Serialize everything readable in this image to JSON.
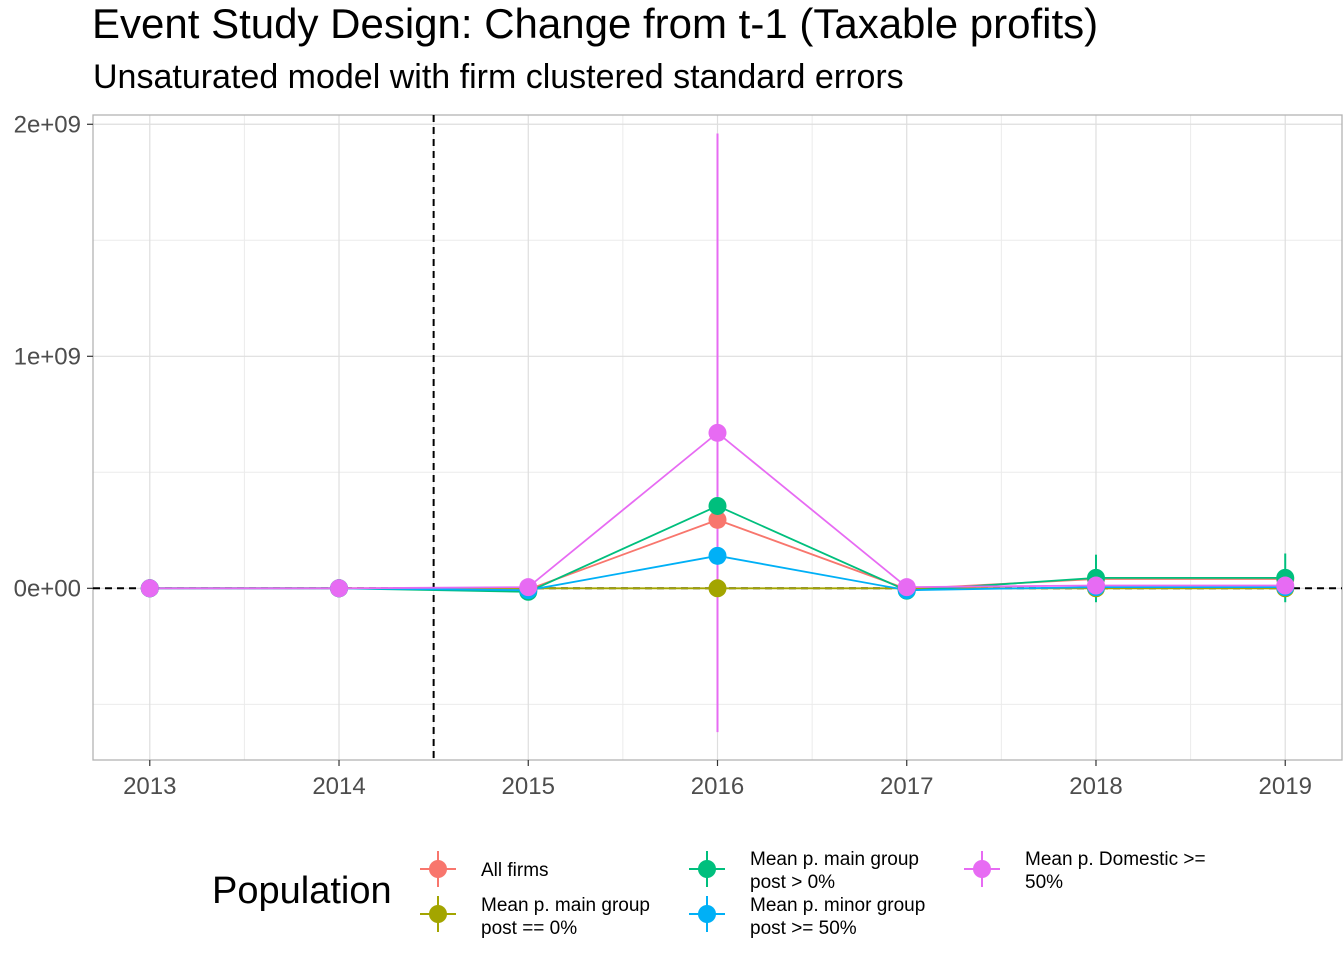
{
  "chart_data": {
    "type": "line",
    "title": "Event Study Design: Change from t-1 (Taxable profits)",
    "subtitle": "Unsaturated model with firm clustered standard errors",
    "xlabel": "",
    "ylabel": "",
    "x": [
      2013,
      2014,
      2015,
      2016,
      2017,
      2018,
      2019
    ],
    "xlim": [
      2012.7,
      2019.3
    ],
    "ylim": [
      -740000000,
      2040000000
    ],
    "y_ticks": [
      0,
      1000000000,
      2000000000
    ],
    "y_tick_labels": [
      "0e+00",
      "1e+09",
      "2e+09"
    ],
    "x_tick_labels": [
      "2013",
      "2014",
      "2015",
      "2016",
      "2017",
      "2018",
      "2019"
    ],
    "reference_lines": {
      "vertical_x": 2014.5,
      "horizontal_y": 0,
      "style": "dashed"
    },
    "grid": true,
    "legend_position": "bottom",
    "legend_title": "Population",
    "series": [
      {
        "name": "All firms",
        "color": "#F8766D",
        "values": [
          0,
          0,
          -5000000,
          295000000,
          -3000000,
          40000000,
          40000000
        ],
        "ci_low": [
          null,
          null,
          null,
          null,
          null,
          null,
          null
        ],
        "ci_high": [
          null,
          null,
          null,
          null,
          null,
          null,
          null
        ]
      },
      {
        "name": "Mean p. main group post == 0%",
        "color": "#A3A500",
        "values": [
          0,
          0,
          0,
          0,
          0,
          0,
          0
        ],
        "ci_low": [
          null,
          null,
          null,
          null,
          null,
          null,
          null
        ],
        "ci_high": [
          null,
          null,
          null,
          null,
          null,
          null,
          null
        ]
      },
      {
        "name": "Mean p. main group post > 0%",
        "color": "#00BF7D",
        "values": [
          0,
          0,
          -15000000,
          355000000,
          -10000000,
          45000000,
          45000000
        ],
        "ci_low": [
          null,
          null,
          null,
          null,
          null,
          -60000000,
          -60000000
        ],
        "ci_high": [
          null,
          null,
          null,
          null,
          null,
          145000000,
          150000000
        ]
      },
      {
        "name": "Mean p. minor group post >= 50%",
        "color": "#00B0F6",
        "values": [
          0,
          0,
          -8000000,
          140000000,
          -8000000,
          5000000,
          5000000
        ],
        "ci_low": [
          null,
          null,
          null,
          null,
          null,
          null,
          null
        ],
        "ci_high": [
          null,
          null,
          null,
          null,
          null,
          null,
          null
        ]
      },
      {
        "name": "Mean p. Domestic >= 50%",
        "color": "#E76BF3",
        "values": [
          0,
          0,
          5000000,
          670000000,
          5000000,
          12000000,
          12000000
        ],
        "ci_low": [
          null,
          null,
          null,
          -620000000,
          null,
          null,
          null
        ],
        "ci_high": [
          null,
          null,
          null,
          1960000000,
          null,
          null,
          null
        ]
      }
    ]
  },
  "legend": {
    "items": [
      {
        "label": "All firms",
        "color": "#F8766D"
      },
      {
        "label": "Mean p. main group\npost == 0%",
        "color": "#A3A500"
      },
      {
        "label": "Mean p. main group\npost > 0%",
        "color": "#00BF7D"
      },
      {
        "label": "Mean p. minor group\npost >= 50%",
        "color": "#00B0F6"
      },
      {
        "label": "Mean p. Domestic >=\n50%",
        "color": "#E76BF3"
      }
    ]
  }
}
